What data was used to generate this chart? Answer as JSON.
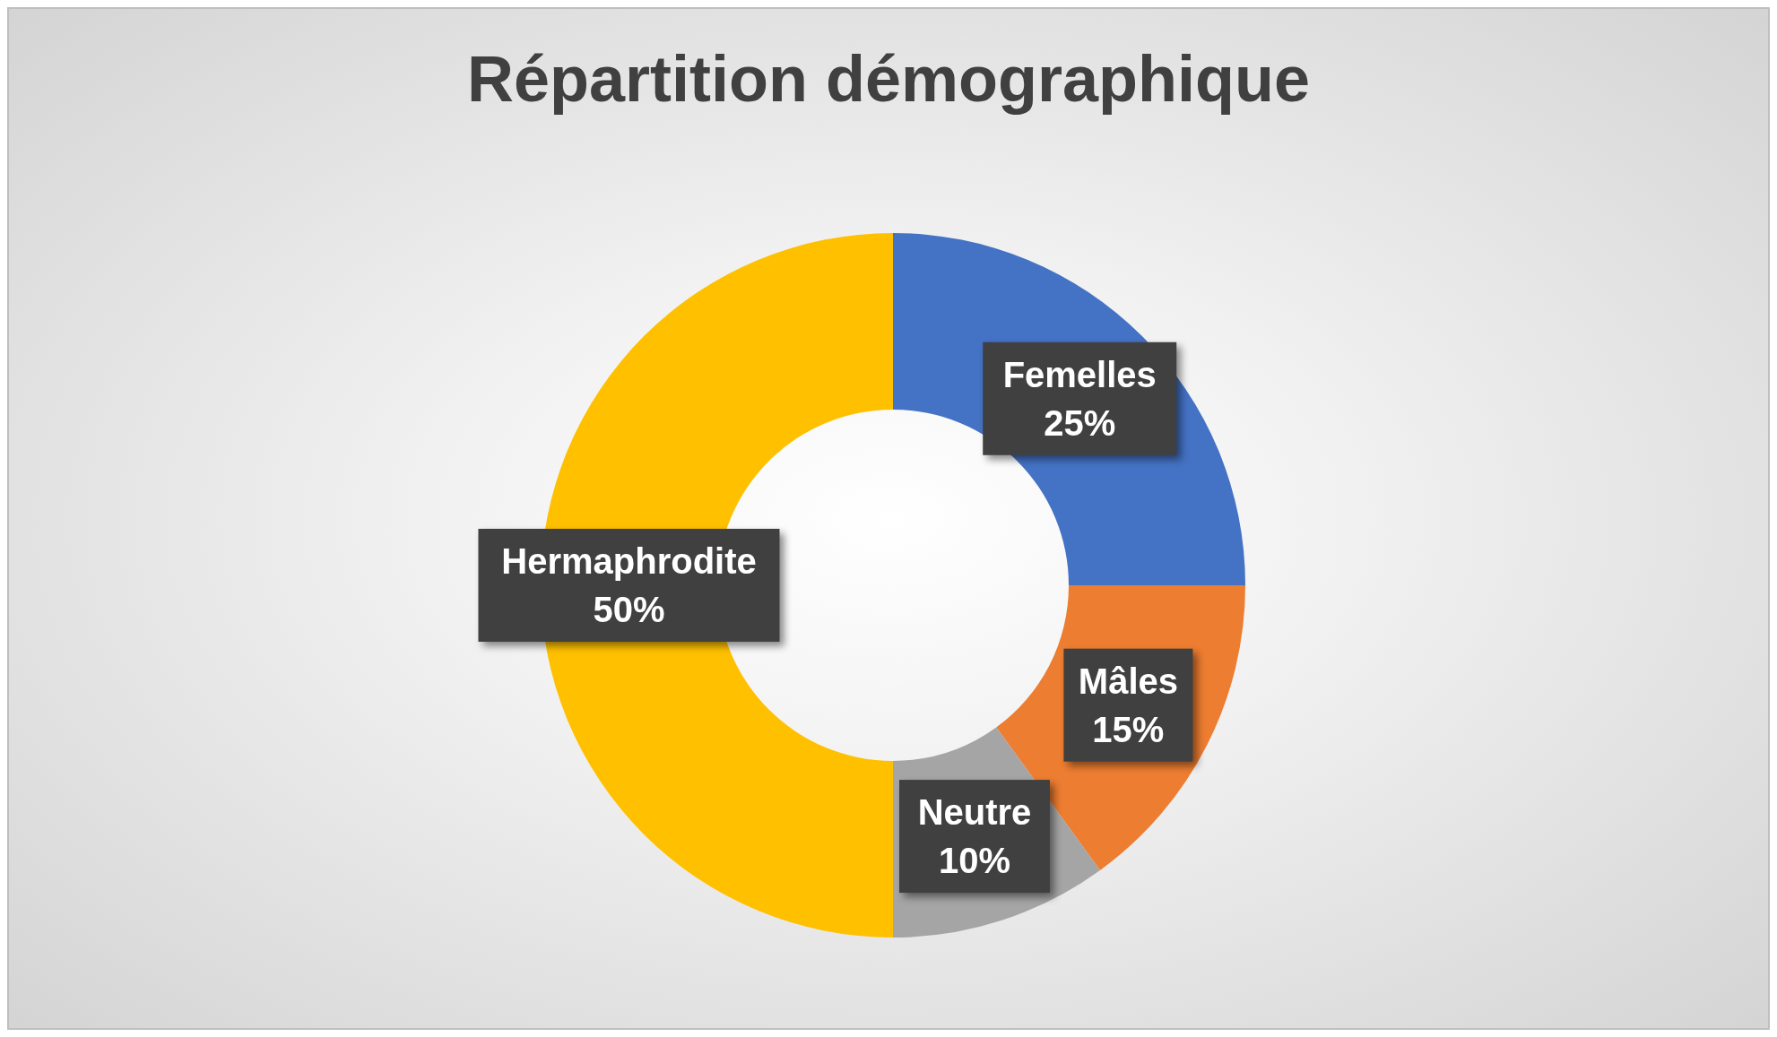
{
  "chart_data": {
    "type": "donut",
    "title": "Répartition démographique",
    "categories": [
      "Femelles",
      "Mâles",
      "Neutre",
      "Hermaphrodite"
    ],
    "values": [
      25,
      15,
      10,
      50
    ],
    "colors": [
      "#4472c4",
      "#ed7d31",
      "#a5a5a5",
      "#ffc000"
    ],
    "value_labels": [
      "25%",
      "15%",
      "10%",
      "50%"
    ]
  }
}
